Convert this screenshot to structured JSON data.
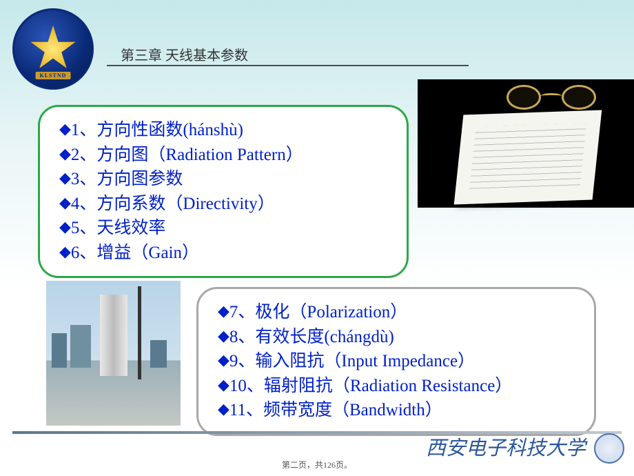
{
  "chapter": {
    "title": "第三章  天线基本参数"
  },
  "logo": {
    "code": "KLSTND"
  },
  "list1": {
    "items": [
      "1、方向性函数(hánshù)",
      "2、方向图（Radiation Pattern）",
      "3、方向图参数",
      "4、方向系数（Directivity）",
      "5、天线效率",
      "6、增益（Gain）"
    ]
  },
  "list2": {
    "items": [
      "7、极化（Polarization）",
      "8、有效长度(chángdù)",
      "9、输入阻抗（Input Impedance）",
      "10、辐射阻抗（Radiation Resistance）",
      "11、频带宽度（Bandwidth）"
    ]
  },
  "footer": {
    "university": "西安电子科技大学",
    "page": "第二页，共126页。"
  },
  "colors": {
    "bullet": "#0020c8",
    "box1_border": "#2ca84a",
    "box2_border": "#a8a8a8",
    "footer_text": "#29569e"
  }
}
